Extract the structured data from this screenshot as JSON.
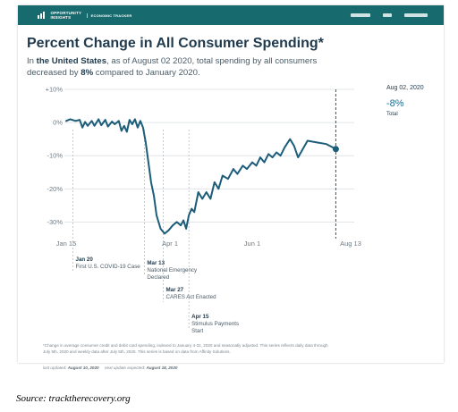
{
  "header": {
    "logo_line1": "OPPORTUNITY",
    "logo_line2": "INSIGHTS",
    "tracker_label": "ECONOMIC TRACKER"
  },
  "title": "Percent Change in All Consumer Spending*",
  "subtitle": {
    "prefix": "In ",
    "location": "the United States",
    "middle": ", as of August 02 2020, total spending by all consumers decreased by ",
    "percent": "8%",
    "suffix": " compared to January 2020."
  },
  "side_panel": {
    "date": "Aug 02, 2020",
    "value": "-8%",
    "label": "Total"
  },
  "annotations": [
    {
      "date": "Jan 20",
      "text": [
        "First U.S. COVID-19 Case"
      ]
    },
    {
      "date": "Mar 13",
      "text": [
        "National Emergency",
        "Declared"
      ]
    },
    {
      "date": "Mar 27",
      "text": [
        "CARES Act Enacted"
      ]
    },
    {
      "date": "Apr 15",
      "text": [
        "Stimulus Payments",
        "Start"
      ]
    }
  ],
  "footnote": "*Change in average consumer credit and debit card spending, indexed to January 4-31, 2020 and seasonally adjusted. This series reflects daily data through July 5th, 2020 and weekly data after July 5th, 2020. This series is based on data from Affinity Solutions.",
  "updated": {
    "last_label": "last updated:",
    "last_date": "August 10, 2020",
    "next_label": "next update expected:",
    "next_date": "August 18, 2020"
  },
  "source": "Source: tracktherecovery.org",
  "colors": {
    "header": "#176b6e",
    "line": "#1c5d7a",
    "grid": "#e1e5e8",
    "text": "#1f3a4d"
  },
  "chart_data": {
    "type": "line",
    "x_axis": "date",
    "ylim": [
      -35,
      10
    ],
    "y_ticks": [
      "+10%",
      "0%",
      "-10%",
      "-20%",
      "-30%"
    ],
    "y_tick_values": [
      10,
      0,
      -10,
      -20,
      -30
    ],
    "x_ticks": [
      {
        "label": "Jan 15",
        "date": "2020-01-15"
      },
      {
        "label": "Apr 1",
        "date": "2020-04-01"
      },
      {
        "label": "Jun 1",
        "date": "2020-06-01"
      },
      {
        "label": "Aug 13",
        "date": "2020-08-13"
      }
    ],
    "grid": true,
    "reference_lines": [
      "2020-01-20",
      "2020-03-13",
      "2020-03-27",
      "2020-04-15"
    ],
    "end_marker": {
      "date": "2020-08-02",
      "value": -8
    },
    "series": [
      {
        "points": [
          [
            "2020-01-15",
            0.5
          ],
          [
            "2020-01-18",
            1.0
          ],
          [
            "2020-01-22",
            0.5
          ],
          [
            "2020-01-25",
            0.8
          ],
          [
            "2020-01-27",
            -1.5
          ],
          [
            "2020-01-29",
            0.2
          ],
          [
            "2020-01-31",
            -1.0
          ],
          [
            "2020-02-03",
            0.5
          ],
          [
            "2020-02-05",
            -1.0
          ],
          [
            "2020-02-08",
            1.0
          ],
          [
            "2020-02-10",
            -0.8
          ],
          [
            "2020-02-13",
            0.8
          ],
          [
            "2020-02-15",
            -1.2
          ],
          [
            "2020-02-18",
            0.3
          ],
          [
            "2020-02-20",
            -0.5
          ],
          [
            "2020-02-23",
            0.5
          ],
          [
            "2020-02-25",
            -2.5
          ],
          [
            "2020-02-27",
            -1.0
          ],
          [
            "2020-02-29",
            -2.8
          ],
          [
            "2020-03-02",
            0.8
          ],
          [
            "2020-03-04",
            -0.5
          ],
          [
            "2020-03-06",
            1.0
          ],
          [
            "2020-03-08",
            -1.5
          ],
          [
            "2020-03-10",
            0.5
          ],
          [
            "2020-03-12",
            -1.5
          ],
          [
            "2020-03-14",
            -6.0
          ],
          [
            "2020-03-16",
            -12.0
          ],
          [
            "2020-03-18",
            -18.0
          ],
          [
            "2020-03-20",
            -22.0
          ],
          [
            "2020-03-22",
            -28.0
          ],
          [
            "2020-03-25",
            -32.0
          ],
          [
            "2020-03-28",
            -33.5
          ],
          [
            "2020-03-31",
            -32.5
          ],
          [
            "2020-04-03",
            -31.0
          ],
          [
            "2020-04-06",
            -30.0
          ],
          [
            "2020-04-09",
            -31.0
          ],
          [
            "2020-04-11",
            -29.5
          ],
          [
            "2020-04-13",
            -32.0
          ],
          [
            "2020-04-15",
            -28.0
          ],
          [
            "2020-04-17",
            -26.0
          ],
          [
            "2020-04-19",
            -27.0
          ],
          [
            "2020-04-22",
            -21.0
          ],
          [
            "2020-04-25",
            -23.0
          ],
          [
            "2020-04-28",
            -21.0
          ],
          [
            "2020-05-01",
            -23.0
          ],
          [
            "2020-05-04",
            -18.0
          ],
          [
            "2020-05-07",
            -20.0
          ],
          [
            "2020-05-10",
            -16.0
          ],
          [
            "2020-05-14",
            -17.0
          ],
          [
            "2020-05-18",
            -14.0
          ],
          [
            "2020-05-21",
            -15.5
          ],
          [
            "2020-05-25",
            -13.0
          ],
          [
            "2020-05-28",
            -14.0
          ],
          [
            "2020-06-01",
            -12.0
          ],
          [
            "2020-06-04",
            -13.0
          ],
          [
            "2020-06-07",
            -10.5
          ],
          [
            "2020-06-10",
            -12.0
          ],
          [
            "2020-06-13",
            -9.5
          ],
          [
            "2020-06-16",
            -10.5
          ],
          [
            "2020-06-19",
            -9.0
          ],
          [
            "2020-06-22",
            -10.0
          ],
          [
            "2020-06-25",
            -7.5
          ],
          [
            "2020-06-29",
            -5.0
          ],
          [
            "2020-07-02",
            -7.0
          ],
          [
            "2020-07-05",
            -10.5
          ],
          [
            "2020-07-12",
            -5.5
          ],
          [
            "2020-07-19",
            -6.0
          ],
          [
            "2020-07-26",
            -6.5
          ],
          [
            "2020-08-02",
            -8.0
          ]
        ]
      }
    ]
  }
}
